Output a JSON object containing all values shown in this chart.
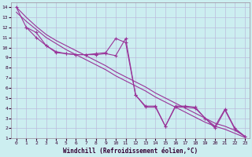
{
  "bg_color": "#cceef0",
  "grid_color": "#bbbbdd",
  "line_color": "#993399",
  "xlabel": "Windchill (Refroidissement éolien,°C)",
  "xlim": [
    -0.5,
    23.5
  ],
  "ylim": [
    1,
    14.5
  ],
  "xticks": [
    0,
    1,
    2,
    3,
    4,
    5,
    6,
    7,
    8,
    9,
    10,
    11,
    12,
    13,
    14,
    15,
    16,
    17,
    18,
    19,
    20,
    21,
    22,
    23
  ],
  "yticks": [
    1,
    2,
    3,
    4,
    5,
    6,
    7,
    8,
    9,
    10,
    11,
    12,
    13,
    14
  ],
  "line1_x": [
    0,
    1,
    2,
    3,
    4,
    5,
    6,
    7,
    8,
    9,
    10,
    11,
    12,
    13,
    14,
    15,
    16,
    17,
    18,
    19,
    20,
    21,
    22,
    23
  ],
  "line1_y": [
    14,
    12,
    11.5,
    10.2,
    9.5,
    9.4,
    9.3,
    9.3,
    9.4,
    9.5,
    10.9,
    10.5,
    5.3,
    4.2,
    4.2,
    2.2,
    4.2,
    4.2,
    4.1,
    3.0,
    2.2,
    3.9,
    2.0,
    1.2
  ],
  "line2_x": [
    1,
    2,
    3,
    4,
    5,
    6,
    7,
    8,
    9,
    10,
    11,
    12,
    13,
    14,
    15,
    16,
    17,
    18,
    19,
    20,
    21,
    22,
    23
  ],
  "line2_y": [
    12,
    11,
    10.2,
    9.6,
    9.4,
    9.3,
    9.3,
    9.3,
    9.4,
    9.2,
    10.9,
    5.3,
    4.1,
    4.1,
    2.2,
    4.1,
    4.1,
    4.0,
    3.0,
    2.0,
    3.8,
    1.9,
    1.2
  ],
  "line3_x": [
    0,
    1,
    2,
    3,
    4,
    5,
    6,
    7,
    8,
    9,
    10,
    11,
    12,
    13,
    14,
    15,
    16,
    17,
    18,
    19,
    20,
    21,
    22,
    23
  ],
  "line3_y": [
    14,
    13.0,
    12.1,
    11.3,
    10.7,
    10.2,
    9.7,
    9.2,
    8.7,
    8.2,
    7.6,
    7.1,
    6.6,
    6.1,
    5.5,
    5.0,
    4.5,
    4.0,
    3.5,
    3.0,
    2.5,
    2.2,
    1.8,
    1.2
  ],
  "line4_x": [
    0,
    1,
    2,
    3,
    4,
    5,
    6,
    7,
    8,
    9,
    10,
    11,
    12,
    13,
    14,
    15,
    16,
    17,
    18,
    19,
    20,
    21,
    22,
    23
  ],
  "line4_y": [
    13.5,
    12.6,
    11.8,
    11.0,
    10.4,
    9.8,
    9.3,
    8.8,
    8.3,
    7.8,
    7.2,
    6.7,
    6.2,
    5.7,
    5.1,
    4.6,
    4.1,
    3.6,
    3.1,
    2.6,
    2.2,
    1.9,
    1.5,
    1.1
  ]
}
